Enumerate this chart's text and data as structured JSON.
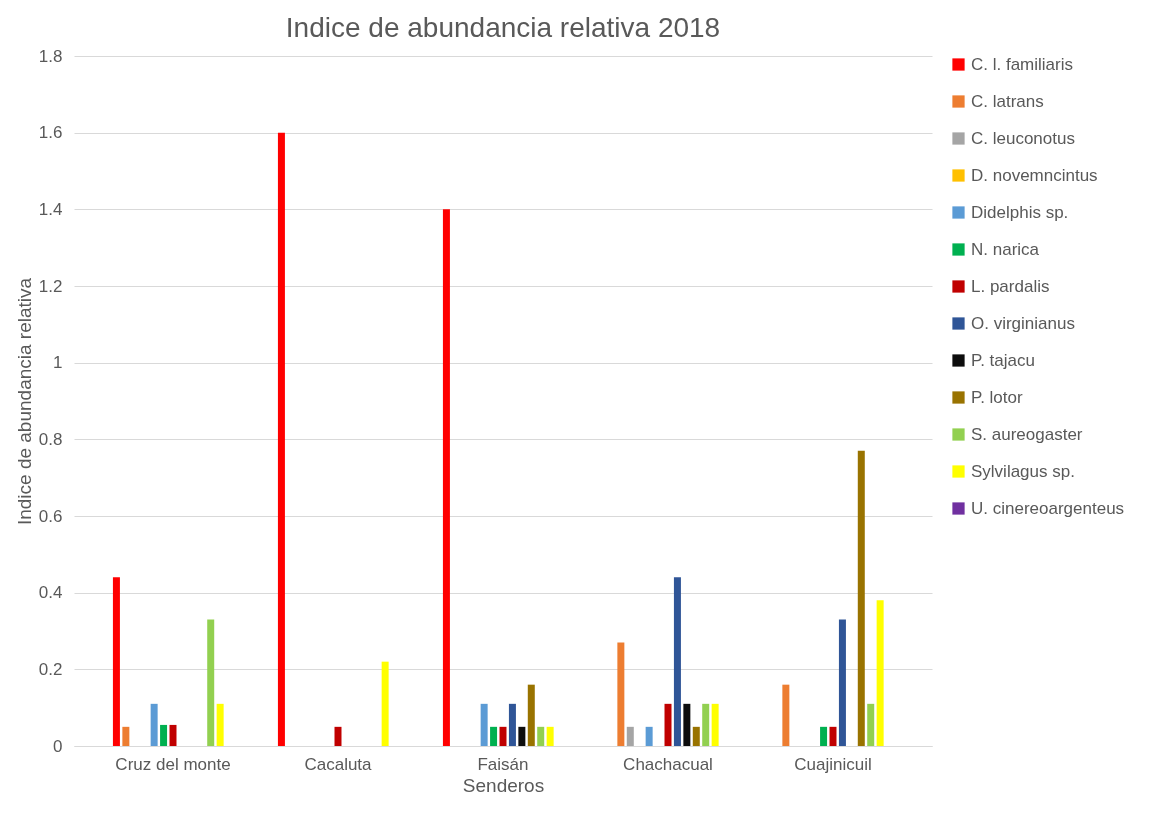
{
  "chart_data": {
    "type": "bar",
    "title": "Indice de abundancia relativa 2018",
    "xlabel": "Senderos",
    "ylabel": "Indice de abundancia relativa",
    "categories": [
      "Cruz del monte",
      "Cacaluta",
      "Faisán",
      "Chachacual",
      "Cuajinicuil"
    ],
    "series": [
      {
        "name": "C. l. familiaris",
        "color": "#ff0000",
        "values": [
          0.44,
          1.6,
          1.4,
          0,
          0
        ]
      },
      {
        "name": "C. latrans",
        "color": "#ed7d31",
        "values": [
          0.05,
          0,
          0,
          0.27,
          0.16
        ]
      },
      {
        "name": "C. leuconotus",
        "color": "#a5a5a5",
        "values": [
          0,
          0,
          0,
          0.05,
          0
        ]
      },
      {
        "name": "D. novemncintus",
        "color": "#ffc000",
        "values": [
          0,
          0,
          0,
          0,
          0
        ]
      },
      {
        "name": "Didelphis sp.",
        "color": "#5b9bd5",
        "values": [
          0.11,
          0,
          0.11,
          0.05,
          0
        ]
      },
      {
        "name": "N. narica",
        "color": "#00b050",
        "values": [
          0.055,
          0,
          0.05,
          0,
          0.05
        ]
      },
      {
        "name": "L. pardalis",
        "color": "#c00000",
        "values": [
          0.055,
          0.05,
          0.05,
          0.11,
          0.05
        ]
      },
      {
        "name": "O. virginianus",
        "color": "#2f5597",
        "values": [
          0,
          0,
          0.11,
          0.44,
          0.33
        ]
      },
      {
        "name": "P. tajacu",
        "color": "#0d0d0d",
        "values": [
          0,
          0,
          0.05,
          0.11,
          0
        ]
      },
      {
        "name": "P. lotor",
        "color": "#997300",
        "values": [
          0,
          0,
          0.16,
          0.05,
          0.77
        ]
      },
      {
        "name": "S. aureogaster",
        "color": "#92d050",
        "values": [
          0.33,
          0,
          0.05,
          0.11,
          0.11
        ]
      },
      {
        "name": "Sylvilagus sp.",
        "color": "#ffff00",
        "values": [
          0.11,
          0.22,
          0.05,
          0.11,
          0.38
        ]
      },
      {
        "name": "U. cinereoargenteus",
        "color": "#7030a0",
        "values": [
          0,
          0,
          0,
          0,
          0
        ]
      }
    ],
    "ylim": [
      0,
      1.8
    ],
    "yticks": [
      0,
      0.2,
      0.4,
      0.6,
      0.8,
      1,
      1.2,
      1.4,
      1.6,
      1.8
    ],
    "grid": "y",
    "legend": "right"
  }
}
